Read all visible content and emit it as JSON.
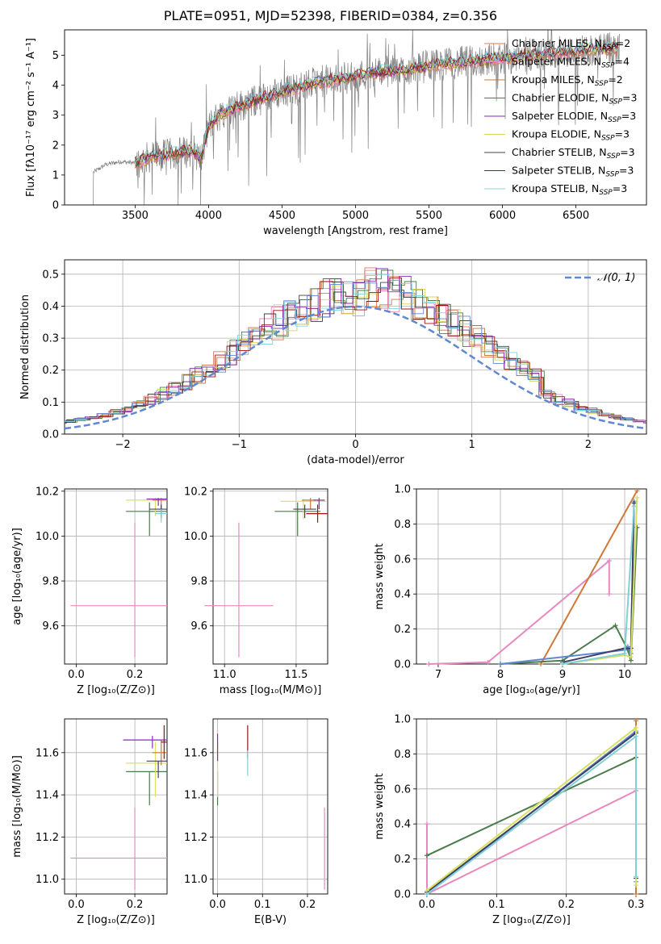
{
  "page_title": "PLATE=0951, MJD=52398, FIBERID=0384, z=0.356",
  "colors": {
    "Chabrier MILES": "#e07850",
    "Salpeter MILES": "#e888c0",
    "Kroupa MILES": "#c87838",
    "Chabrier ELODIE": "#4a7c4a",
    "Salpeter ELODIE": "#8a2ab0",
    "Kroupa ELODIE": "#d8d858",
    "Chabrier STELIB": "#404040",
    "Salpeter STELIB": "#a01010",
    "Kroupa STELIB": "#80d8e0",
    "observed": "#808080",
    "blue": "#6088d0",
    "pink": "#e888c0",
    "green": "#5a8a5a",
    "yellow": "#d8e060",
    "orange": "#d07838",
    "cyan": "#80d0d8",
    "dark": "#404060"
  },
  "chart_data": [
    {
      "id": "spectrum",
      "type": "line",
      "xlabel": "wavelength [Angstrom, rest frame]",
      "ylabel": "Flux [fλ10⁻¹⁷ erg cm⁻² s⁻¹ A⁻¹]",
      "xlim": [
        3020,
        6980
      ],
      "ylim": [
        0,
        5.85
      ],
      "xticks": [
        3500,
        4000,
        4500,
        5000,
        5500,
        6000,
        6500
      ],
      "yticks": [
        0,
        1,
        2,
        3,
        4,
        5
      ],
      "legend_position": "top-right",
      "legend": [
        {
          "name": "Chabrier MILES",
          "base": "Chabrier MILES",
          "sub": "SSP",
          "suffix": "=2",
          "color": "#e07850"
        },
        {
          "name": "Salpeter MILES",
          "base": "Salpeter MILES",
          "sub": "SSP",
          "suffix": "=4",
          "color": "#e888c0"
        },
        {
          "name": "Kroupa MILES",
          "base": "Kroupa MILES",
          "sub": "SSP",
          "suffix": "=2",
          "color": "#c87838"
        },
        {
          "name": "Chabrier ELODIE",
          "base": "Chabrier ELODIE",
          "sub": "SSP",
          "suffix": "=3",
          "color": "#4a7c4a"
        },
        {
          "name": "Salpeter ELODIE",
          "base": "Salpeter ELODIE",
          "sub": "SSP",
          "suffix": "=3",
          "color": "#8a2ab0"
        },
        {
          "name": "Kroupa ELODIE",
          "base": "Kroupa ELODIE",
          "sub": "SSP",
          "suffix": "=3",
          "color": "#d8d858"
        },
        {
          "name": "Chabrier STELIB",
          "base": "Chabrier STELIB",
          "sub": "SSP",
          "suffix": "=3",
          "color": "#404040"
        },
        {
          "name": "Salpeter STELIB",
          "base": "Salpeter STELIB",
          "sub": "SSP",
          "suffix": "=3",
          "color": "#a01010"
        },
        {
          "name": "Kroupa STELIB",
          "base": "Kroupa STELIB",
          "sub": "SSP",
          "suffix": "=3",
          "color": "#80d8e0"
        }
      ],
      "continuum": {
        "x": [
          3220,
          3300,
          3400,
          3500,
          3550,
          3600,
          3700,
          3800,
          3900,
          3950,
          4000,
          4050,
          4100,
          4200,
          4300,
          4400,
          4500,
          4600,
          4700,
          4800,
          4900,
          5000,
          5100,
          5200,
          5300,
          5400,
          5500,
          5600,
          5700,
          5800,
          5900,
          6000,
          6100,
          6200,
          6300,
          6400,
          6500,
          6600,
          6700,
          6790
        ],
        "y": [
          1.1,
          1.35,
          1.45,
          1.4,
          1.5,
          1.6,
          1.65,
          1.75,
          1.8,
          1.5,
          2.6,
          2.9,
          3.1,
          3.3,
          3.45,
          3.6,
          3.8,
          3.9,
          4.05,
          4.15,
          4.2,
          4.3,
          4.4,
          4.45,
          4.5,
          4.55,
          4.65,
          4.7,
          4.75,
          4.8,
          4.85,
          4.9,
          4.95,
          5.0,
          5.05,
          5.1,
          5.15,
          5.2,
          5.2,
          5.25
        ]
      },
      "model_range": [
        3500,
        6790
      ]
    },
    {
      "id": "residuals",
      "type": "line",
      "xlabel": "(data-model)/error",
      "ylabel": "Normed distribution",
      "xlim": [
        -2.5,
        2.5
      ],
      "ylim": [
        0,
        0.545
      ],
      "xticks": [
        -2,
        -1,
        0,
        1,
        2
      ],
      "xtick_labels": [
        "−2",
        "−1",
        "0",
        "1",
        "2"
      ],
      "yticks": [
        0.0,
        0.1,
        0.2,
        0.3,
        0.4,
        0.5
      ],
      "ytick_labels": [
        "0.0",
        "0.1",
        "0.2",
        "0.3",
        "0.4",
        "0.5"
      ],
      "gaussian_label": "𝒩(0, 1)",
      "legend_position": "top-right",
      "gaussian": {
        "mu": 0,
        "sigma": 1
      }
    },
    {
      "id": "age-vs-Z",
      "type": "scatter",
      "xlabel": "Z [log₁₀(Z/Z⊙)]",
      "ylabel": "age  [log₁₀(age/yr)]",
      "xlim": [
        -0.04,
        0.31
      ],
      "ylim": [
        9.43,
        10.21
      ],
      "xticks": [
        0.0,
        0.2
      ],
      "xtick_labels": [
        "0.0",
        "0.2"
      ],
      "yticks": [
        9.6,
        9.8,
        10.0,
        10.2
      ],
      "ytick_labels": [
        "9.6",
        "9.8",
        "10.0",
        "10.2"
      ],
      "points": [
        {
          "x": 0.2,
          "y": 9.69,
          "xerr": 0.22,
          "yerr_lo": 0.23,
          "yerr_hi": 0.37,
          "color": "#e888c0"
        },
        {
          "x": 0.25,
          "y": 10.11,
          "xerr": 0.08,
          "yerr_lo": 0.11,
          "yerr_hi": 0.04,
          "color": "#4a7c4a"
        },
        {
          "x": 0.27,
          "y": 10.16,
          "xerr": 0.1,
          "yerr_lo": 0.07,
          "yerr_hi": 0.01,
          "color": "#d8e060"
        },
        {
          "x": 0.29,
          "y": 10.16,
          "xerr": 0.03,
          "yerr_lo": 0.05,
          "yerr_hi": 0.01,
          "color": "#d07838"
        },
        {
          "x": 0.29,
          "y": 10.12,
          "xerr": 0.04,
          "yerr_lo": 0.04,
          "yerr_hi": 0.02,
          "color": "#404060"
        },
        {
          "x": 0.28,
          "y": 10.165,
          "xerr": 0.04,
          "yerr_lo": 0.03,
          "yerr_hi": 0.005,
          "color": "#8a2ab0"
        },
        {
          "x": 0.29,
          "y": 10.1,
          "xerr": 0.02,
          "yerr_lo": 0.04,
          "yerr_hi": 0.02,
          "color": "#80d0d8"
        }
      ]
    },
    {
      "id": "age-vs-mass",
      "type": "scatter",
      "xlabel": "mass [log₁₀(M/M⊙)]",
      "ylabel": "",
      "xlim": [
        10.92,
        11.72
      ],
      "ylim": [
        9.43,
        10.21
      ],
      "xticks": [
        11.0,
        11.5
      ],
      "xtick_labels": [
        "11.0",
        "11.5"
      ],
      "yticks": [
        9.6,
        9.8,
        10.0,
        10.2
      ],
      "ytick_labels": [
        "9.6",
        "9.8",
        "10.0",
        "10.2"
      ],
      "points": [
        {
          "x": 11.1,
          "y": 9.69,
          "xerr": 0.24,
          "yerr_lo": 0.23,
          "yerr_hi": 0.37,
          "color": "#e888c0"
        },
        {
          "x": 11.51,
          "y": 10.11,
          "xerr": 0.16,
          "yerr_lo": 0.11,
          "yerr_hi": 0.04,
          "color": "#4a7c4a"
        },
        {
          "x": 11.55,
          "y": 10.155,
          "xerr": 0.16,
          "yerr_lo": 0.08,
          "yerr_hi": 0.01,
          "color": "#d8e060"
        },
        {
          "x": 11.6,
          "y": 10.16,
          "xerr": 0.06,
          "yerr_lo": 0.04,
          "yerr_hi": 0.01,
          "color": "#d07838"
        },
        {
          "x": 11.56,
          "y": 10.12,
          "xerr": 0.08,
          "yerr_lo": 0.04,
          "yerr_hi": 0.02,
          "color": "#404060"
        },
        {
          "x": 11.66,
          "y": 10.16,
          "xerr": 0.04,
          "yerr_lo": 0.04,
          "yerr_hi": 0.01,
          "color": "#8a2ab0"
        },
        {
          "x": 11.65,
          "y": 10.1,
          "xerr": 0.08,
          "yerr_lo": 0.04,
          "yerr_hi": 0.04,
          "color": "#a01010"
        }
      ]
    },
    {
      "id": "weight-vs-age",
      "type": "line",
      "xlabel": "age  [log₁₀(age/yr)]",
      "ylabel": "mass weight",
      "xlim": [
        6.65,
        10.35
      ],
      "ylim": [
        0,
        1.0
      ],
      "xticks": [
        7,
        8,
        9,
        10
      ],
      "xtick_labels": [
        "7",
        "8",
        "9",
        "10"
      ],
      "yticks": [
        0.0,
        0.2,
        0.4,
        0.6,
        0.8,
        1.0
      ],
      "ytick_labels": [
        "0.0",
        "0.2",
        "0.4",
        "0.6",
        "0.8",
        "1.0"
      ],
      "series": [
        {
          "color": "#e888c0",
          "x": [
            6.85,
            7.8,
            9.75,
            9.75
          ],
          "y": [
            0.0,
            0.01,
            0.59,
            0.4
          ]
        },
        {
          "color": "#d07838",
          "x": [
            8.65,
            10.2
          ],
          "y": [
            0.0,
            0.99
          ]
        },
        {
          "color": "#4a7c4a",
          "x": [
            8.0,
            9.0,
            9.85,
            10.05,
            10.1,
            10.2
          ],
          "y": [
            0.0,
            0.02,
            0.22,
            0.08,
            0.02,
            0.78
          ]
        },
        {
          "color": "#6088d0",
          "x": [
            8.0,
            10.0,
            10.05,
            10.1,
            10.15
          ],
          "y": [
            0.0,
            0.08,
            0.1,
            0.06,
            0.93
          ]
        },
        {
          "color": "#404060",
          "x": [
            9.0,
            10.0,
            10.1,
            10.15
          ],
          "y": [
            0.01,
            0.09,
            0.09,
            0.92
          ]
        },
        {
          "color": "#d8e060",
          "x": [
            9.0,
            10.0,
            10.1,
            10.2
          ],
          "y": [
            0.0,
            0.05,
            0.04,
            0.95
          ]
        },
        {
          "color": "#80d0d8",
          "x": [
            9.0,
            10.0,
            10.15
          ],
          "y": [
            0.0,
            0.06,
            0.9
          ]
        }
      ]
    },
    {
      "id": "mass-vs-Z",
      "type": "scatter",
      "xlabel": "Z [log₁₀(Z/Z⊙)]",
      "ylabel": "mass [log₁₀(M/M⊙)]",
      "xlim": [
        -0.04,
        0.31
      ],
      "ylim": [
        10.93,
        11.76
      ],
      "xticks": [
        0.0,
        0.2
      ],
      "xtick_labels": [
        "0.0",
        "0.2"
      ],
      "yticks": [
        11.0,
        11.2,
        11.4,
        11.6
      ],
      "ytick_labels": [
        "11.0",
        "11.2",
        "11.4",
        "11.6"
      ],
      "points": [
        {
          "x": 0.2,
          "y": 11.1,
          "xerr": 0.22,
          "yerr_lo": 0.15,
          "yerr_hi": 0.24,
          "color": "#e888c0"
        },
        {
          "x": 0.25,
          "y": 11.51,
          "xerr": 0.08,
          "yerr_lo": 0.16,
          "yerr_hi": 0.0,
          "color": "#4a7c4a"
        },
        {
          "x": 0.27,
          "y": 11.55,
          "xerr": 0.1,
          "yerr_lo": 0.16,
          "yerr_hi": 0.1,
          "color": "#d8e060"
        },
        {
          "x": 0.29,
          "y": 11.6,
          "xerr": 0.03,
          "yerr_lo": 0.06,
          "yerr_hi": 0.06,
          "color": "#d07838"
        },
        {
          "x": 0.28,
          "y": 11.56,
          "xerr": 0.04,
          "yerr_lo": 0.08,
          "yerr_hi": 0.0,
          "color": "#404060"
        },
        {
          "x": 0.26,
          "y": 11.66,
          "xerr": 0.1,
          "yerr_lo": 0.04,
          "yerr_hi": 0.02,
          "color": "#8a2ab0"
        },
        {
          "x": 0.3,
          "y": 11.65,
          "xerr": 0.01,
          "yerr_lo": 0.08,
          "yerr_hi": 0.08,
          "color": "#a01010"
        }
      ]
    },
    {
      "id": "mass-vs-EBV",
      "type": "scatter",
      "xlabel": "E(B-V)",
      "ylabel": "",
      "xlim": [
        -0.01,
        0.245
      ],
      "ylim": [
        10.93,
        11.76
      ],
      "xticks": [
        0.0,
        0.1,
        0.2
      ],
      "xtick_labels": [
        "0.0",
        "0.1",
        "0.2"
      ],
      "yticks": [
        11.0,
        11.2,
        11.4,
        11.6
      ],
      "ytick_labels": [
        "11.0",
        "11.2",
        "11.4",
        "11.6"
      ],
      "points": [
        {
          "x": 0.238,
          "y": 11.1,
          "xerr": 0.0,
          "yerr_lo": 0.15,
          "yerr_hi": 0.24,
          "color": "#e888c0"
        },
        {
          "x": 0.0,
          "y": 11.51,
          "xerr": 0.0,
          "yerr_lo": 0.16,
          "yerr_hi": 0.0,
          "color": "#4a7c4a"
        },
        {
          "x": 0.0,
          "y": 11.55,
          "xerr": 0.0,
          "yerr_lo": 0.16,
          "yerr_hi": 0.1,
          "color": "#d8e060"
        },
        {
          "x": 0.0,
          "y": 11.62,
          "xerr": 0.0,
          "yerr_lo": 0.06,
          "yerr_hi": 0.07,
          "color": "#8a2ab0"
        },
        {
          "x": 0.067,
          "y": 11.65,
          "xerr": 0.0,
          "yerr_lo": 0.08,
          "yerr_hi": 0.08,
          "color": "#a01010"
        },
        {
          "x": 0.067,
          "y": 11.55,
          "xerr": 0.0,
          "yerr_lo": 0.06,
          "yerr_hi": 0.06,
          "color": "#80d0d8"
        }
      ]
    },
    {
      "id": "weight-vs-Z",
      "type": "line",
      "xlabel": "Z [log₁₀(Z/Z⊙)]",
      "ylabel": "mass weight",
      "xlim": [
        -0.015,
        0.315
      ],
      "ylim": [
        0,
        1.0
      ],
      "xticks": [
        0.0,
        0.1,
        0.2,
        0.3
      ],
      "xtick_labels": [
        "0.0",
        "0.1",
        "0.2",
        "0.3"
      ],
      "yticks": [
        0.0,
        0.2,
        0.4,
        0.6,
        0.8,
        1.0
      ],
      "ytick_labels": [
        "0.0",
        "0.2",
        "0.4",
        "0.6",
        "0.8",
        "1.0"
      ],
      "series": [
        {
          "color": "#e888c0",
          "x": [
            0.0,
            0.0,
            0.0,
            0.3
          ],
          "y": [
            0.4,
            0.01,
            0.0,
            0.59
          ]
        },
        {
          "color": "#4a7c4a",
          "x": [
            0.0,
            0.3
          ],
          "y": [
            0.22,
            0.78
          ]
        },
        {
          "color": "#d07838",
          "x": [
            0.3,
            0.3
          ],
          "y": [
            0.0,
            0.99
          ]
        },
        {
          "color": "#6088d0",
          "x": [
            0.0,
            0.3,
            0.3
          ],
          "y": [
            0.0,
            0.93,
            0.07
          ]
        },
        {
          "color": "#404060",
          "x": [
            0.0,
            0.3,
            0.3
          ],
          "y": [
            0.01,
            0.92,
            0.09
          ]
        },
        {
          "color": "#d8e060",
          "x": [
            0.0,
            0.3,
            0.3
          ],
          "y": [
            0.02,
            0.95,
            0.05
          ]
        },
        {
          "color": "#80d0d8",
          "x": [
            0.0,
            0.3,
            0.3
          ],
          "y": [
            0.0,
            0.9,
            0.1
          ]
        }
      ]
    }
  ]
}
